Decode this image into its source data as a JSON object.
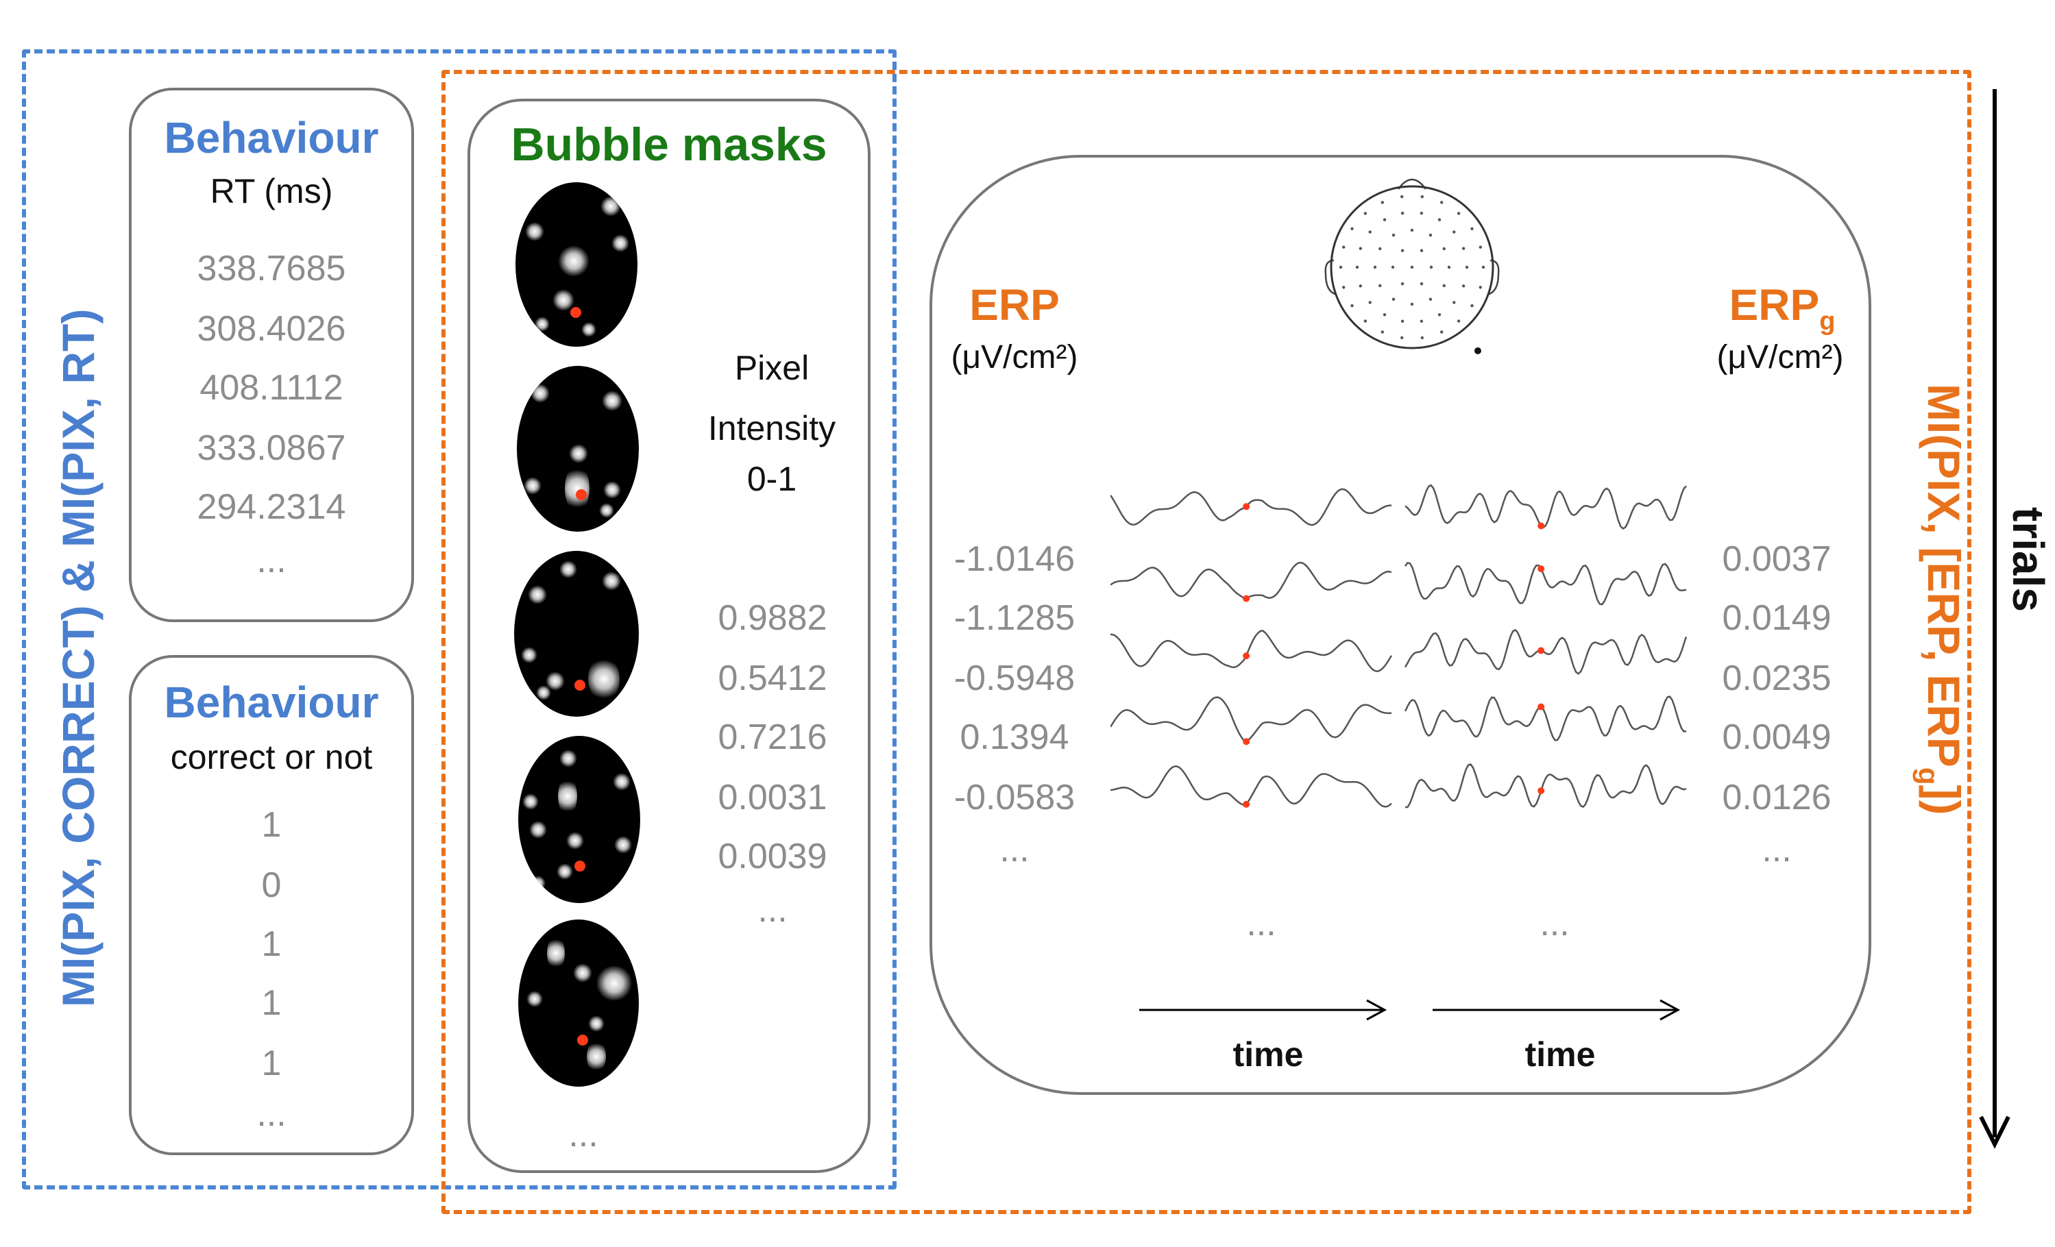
{
  "left_group_label": "MI(PIX, CORRECT) & MI(PIX, RT)",
  "right_group_label": "MI(PIX, [ERP, ERP",
  "right_group_label_sub": "g",
  "right_group_label_end": "])",
  "trials_label": "trials",
  "behaviour_rt": {
    "title": "Behaviour",
    "subtitle": "RT (ms)",
    "values": [
      "338.7685",
      "308.4026",
      "408.1112",
      "333.0867",
      "294.2314",
      "..."
    ]
  },
  "behaviour_correct": {
    "title": "Behaviour",
    "subtitle": "correct or not",
    "values": [
      "1",
      "0",
      "1",
      "1",
      "1",
      "..."
    ]
  },
  "bubble_masks": {
    "title": "Bubble masks",
    "pixel_label_1": "Pixel",
    "pixel_label_2": "Intensity",
    "pixel_label_3": "0-1",
    "pixel_values": [
      "0.9882",
      "0.5412",
      "0.7216",
      "0.0031",
      "0.0039",
      "..."
    ],
    "ellipsis": "..."
  },
  "erp": {
    "label": "ERP",
    "unit": "(μV/cm²)",
    "values": [
      "-1.0146",
      "-1.1285",
      "-0.5948",
      "0.1394",
      "-0.0583",
      "..."
    ]
  },
  "erp_g": {
    "label": "ERP",
    "label_sub": "g",
    "unit": "(μV/cm²)",
    "values": [
      "0.0037",
      "0.0149",
      "0.0235",
      "0.0049",
      "0.0126",
      "..."
    ]
  },
  "waveform_ellipsis": "...",
  "time_label": "time",
  "colors": {
    "blue": "#4a86d4",
    "orange": "#e8721c",
    "green": "#1a7a16",
    "grey_value": "#8c8c8c",
    "red_dot": "#ff3b1a"
  }
}
